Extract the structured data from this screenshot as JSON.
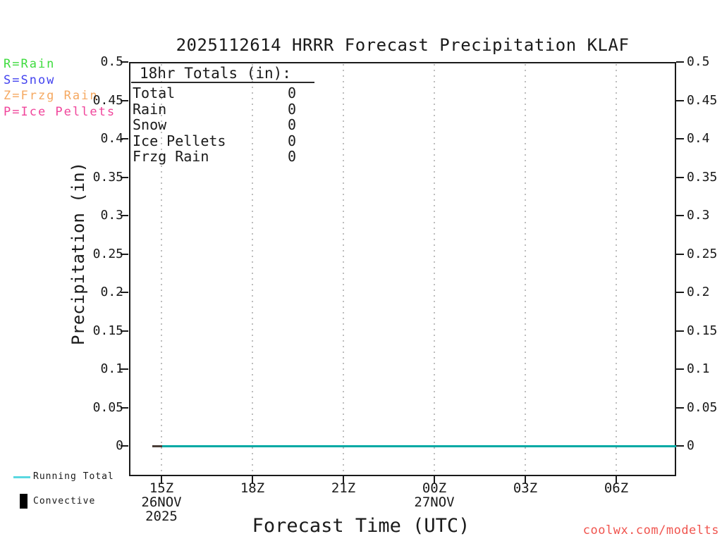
{
  "title": "2025112614 HRRR Forecast Precipitation KLAF",
  "watermark": "coolwx.com/modelts",
  "type_legend": {
    "items": [
      {
        "label": "R=Rain",
        "color": "#3ddb3d"
      },
      {
        "label": "S=Snow",
        "color": "#4343ef"
      },
      {
        "label": "Z=Frzg Rain",
        "color": "#f5a860"
      },
      {
        "label": "P=Ice Pellets",
        "color": "#f0459b"
      }
    ]
  },
  "totals_panel": {
    "header": "18hr Totals (in):",
    "rows": [
      {
        "label": "Total",
        "value": "0"
      },
      {
        "label": "Rain",
        "value": "0"
      },
      {
        "label": "Snow",
        "value": "0"
      },
      {
        "label": "Ice Pellets",
        "value": "0"
      },
      {
        "label": "Frzg Rain",
        "value": "0"
      }
    ]
  },
  "y_axis": {
    "label": "Precipitation (in)",
    "ticks": [
      "0.5",
      "0.45",
      "0.4",
      "0.35",
      "0.3",
      "0.25",
      "0.2",
      "0.15",
      "0.1",
      "0.05",
      "0"
    ]
  },
  "x_axis": {
    "label": "Forecast Time (UTC)",
    "ticks": [
      {
        "label": "15Z",
        "sub": [
          "26NOV",
          "2025"
        ]
      },
      {
        "label": "18Z",
        "sub": []
      },
      {
        "label": "21Z",
        "sub": []
      },
      {
        "label": "00Z",
        "sub": [
          "27NOV"
        ]
      },
      {
        "label": "03Z",
        "sub": []
      },
      {
        "label": "06Z",
        "sub": []
      }
    ]
  },
  "series_legend": [
    {
      "name": "Running Total",
      "swatch": "line",
      "color": "#5ad8e0"
    },
    {
      "name": "Convective",
      "swatch": "bar",
      "color": "#000000"
    }
  ],
  "chart_data": {
    "type": "line",
    "title": "2025112614 HRRR Forecast Precipitation KLAF",
    "xlabel": "Forecast Time (UTC)",
    "ylabel": "Precipitation (in)",
    "ylim": [
      0,
      0.5
    ],
    "y_tick_step": 0.05,
    "x_tick_labels": [
      "15Z",
      "18Z",
      "21Z",
      "00Z",
      "03Z",
      "06Z"
    ],
    "x_start_date": "26NOV 2025",
    "x_second_date": "27NOV",
    "grid": "vertical-dotted",
    "legend_position": "bottom-left",
    "series": [
      {
        "name": "Running Total",
        "color": "#00a9a4",
        "values_at_ticks": [
          0,
          0,
          0,
          0,
          0,
          0
        ]
      },
      {
        "name": "Convective",
        "color": "#000000",
        "values_at_ticks": [
          0,
          0,
          0,
          0,
          0,
          0
        ]
      }
    ],
    "totals_18hr_in": {
      "Total": 0,
      "Rain": 0,
      "Snow": 0,
      "Ice Pellets": 0,
      "Frzg Rain": 0
    }
  }
}
